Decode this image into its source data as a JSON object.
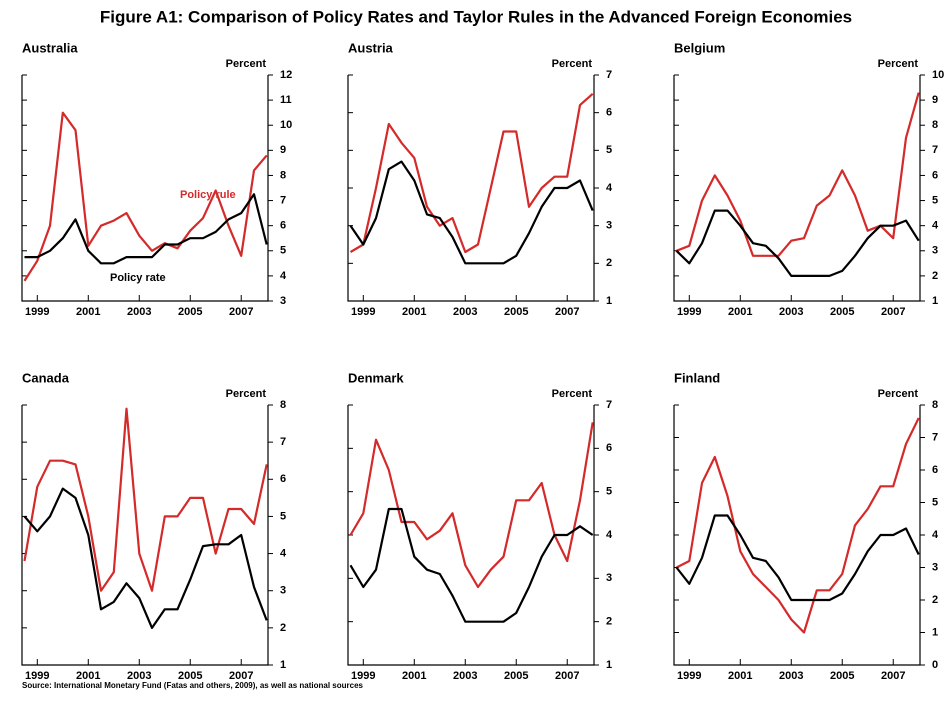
{
  "title": "Figure A1: Comparison of Policy Rates and Taylor Rules in the Advanced Foreign Economies",
  "source": "Source: International Monetary Fund (Fatas and others, 2009), as well as national sources",
  "chart_data": [
    {
      "type": "line",
      "title": "Australia",
      "ylabel": "Percent",
      "x": [
        1998.5,
        1999,
        1999.5,
        2000,
        2000.5,
        2001,
        2001.5,
        2002,
        2002.5,
        2003,
        2003.5,
        2004,
        2004.5,
        2005,
        2005.5,
        2006,
        2006.5,
        2007,
        2007.5,
        2008
      ],
      "xlim": [
        1998.4,
        2008.05
      ],
      "xticks": [
        1999,
        2001,
        2003,
        2005,
        2007
      ],
      "ylim": [
        3,
        12
      ],
      "yticks": [
        3,
        4,
        5,
        6,
        7,
        8,
        9,
        10,
        11,
        12
      ],
      "series": [
        {
          "name": "Policy rule",
          "color": "#d42a2a",
          "values": [
            3.8,
            4.6,
            6.0,
            10.5,
            9.8,
            5.2,
            6.0,
            6.2,
            6.5,
            5.6,
            5.0,
            5.3,
            5.1,
            5.8,
            6.3,
            7.4,
            6.0,
            4.8,
            8.2,
            8.8
          ]
        },
        {
          "name": "Policy rate",
          "color": "#000000",
          "values": [
            4.75,
            4.75,
            5.0,
            5.5,
            6.25,
            5.0,
            4.5,
            4.5,
            4.75,
            4.75,
            4.75,
            5.25,
            5.25,
            5.5,
            5.5,
            5.75,
            6.25,
            6.5,
            7.25,
            5.25
          ]
        }
      ]
    },
    {
      "type": "line",
      "title": "Austria",
      "ylabel": "Percent",
      "x": [
        1998.5,
        1999,
        1999.5,
        2000,
        2000.5,
        2001,
        2001.5,
        2002,
        2002.5,
        2003,
        2003.5,
        2004,
        2004.5,
        2005,
        2005.5,
        2006,
        2006.5,
        2007,
        2007.5,
        2008
      ],
      "xlim": [
        1998.4,
        2008.05
      ],
      "xticks": [
        1999,
        2001,
        2003,
        2005,
        2007
      ],
      "ylim": [
        1,
        7
      ],
      "yticks": [
        1,
        2,
        3,
        4,
        5,
        6,
        7
      ],
      "series": [
        {
          "color": "#d42a2a",
          "values": [
            2.3,
            2.5,
            4.0,
            5.7,
            5.2,
            4.8,
            3.5,
            3.0,
            3.2,
            2.3,
            2.5,
            4.0,
            5.5,
            5.5,
            3.5,
            4.0,
            4.3,
            4.3,
            6.2,
            6.5
          ]
        },
        {
          "color": "#000000",
          "values": [
            3.0,
            2.5,
            3.2,
            4.5,
            4.7,
            4.2,
            3.3,
            3.2,
            2.7,
            2.0,
            2.0,
            2.0,
            2.0,
            2.2,
            2.8,
            3.5,
            4.0,
            4.0,
            4.2,
            3.4
          ]
        }
      ]
    },
    {
      "type": "line",
      "title": "Belgium",
      "ylabel": "Percent",
      "x": [
        1998.5,
        1999,
        1999.5,
        2000,
        2000.5,
        2001,
        2001.5,
        2002,
        2002.5,
        2003,
        2003.5,
        2004,
        2004.5,
        2005,
        2005.5,
        2006,
        2006.5,
        2007,
        2007.5,
        2008
      ],
      "xlim": [
        1998.4,
        2008.05
      ],
      "xticks": [
        1999,
        2001,
        2003,
        2005,
        2007
      ],
      "ylim": [
        1,
        10
      ],
      "yticks": [
        1,
        2,
        3,
        4,
        5,
        6,
        7,
        8,
        9,
        10
      ],
      "series": [
        {
          "color": "#d42a2a",
          "values": [
            3.0,
            3.2,
            5.0,
            6.0,
            5.2,
            4.2,
            2.8,
            2.8,
            2.8,
            3.4,
            3.5,
            4.8,
            5.2,
            6.2,
            5.2,
            3.8,
            4.0,
            3.5,
            7.5,
            9.3
          ]
        },
        {
          "color": "#000000",
          "values": [
            3.0,
            2.5,
            3.3,
            4.6,
            4.6,
            4.0,
            3.3,
            3.2,
            2.7,
            2.0,
            2.0,
            2.0,
            2.0,
            2.2,
            2.8,
            3.5,
            4.0,
            4.0,
            4.2,
            3.4
          ]
        }
      ]
    },
    {
      "type": "line",
      "title": "Canada",
      "ylabel": "Percent",
      "x": [
        1998.5,
        1999,
        1999.5,
        2000,
        2000.5,
        2001,
        2001.5,
        2002,
        2002.5,
        2003,
        2003.5,
        2004,
        2004.5,
        2005,
        2005.5,
        2006,
        2006.5,
        2007,
        2007.5,
        2008
      ],
      "xlim": [
        1998.4,
        2008.05
      ],
      "xticks": [
        1999,
        2001,
        2003,
        2005,
        2007
      ],
      "ylim": [
        1,
        8
      ],
      "yticks": [
        1,
        2,
        3,
        4,
        5,
        6,
        7,
        8
      ],
      "series": [
        {
          "color": "#d42a2a",
          "values": [
            3.8,
            5.8,
            6.5,
            6.5,
            6.4,
            5.0,
            3.0,
            3.5,
            7.9,
            4.0,
            3.0,
            5.0,
            5.0,
            5.5,
            5.5,
            4.0,
            5.2,
            5.2,
            4.8,
            6.4
          ]
        },
        {
          "color": "#000000",
          "values": [
            5.0,
            4.6,
            5.0,
            5.75,
            5.5,
            4.5,
            2.5,
            2.7,
            3.2,
            2.8,
            2.0,
            2.5,
            2.5,
            3.3,
            4.2,
            4.25,
            4.25,
            4.5,
            3.1,
            2.2
          ]
        }
      ]
    },
    {
      "type": "line",
      "title": "Denmark",
      "ylabel": "Percent",
      "x": [
        1998.5,
        1999,
        1999.5,
        2000,
        2000.5,
        2001,
        2001.5,
        2002,
        2002.5,
        2003,
        2003.5,
        2004,
        2004.5,
        2005,
        2005.5,
        2006,
        2006.5,
        2007,
        2007.5,
        2008
      ],
      "xlim": [
        1998.4,
        2008.05
      ],
      "xticks": [
        1999,
        2001,
        2003,
        2005,
        2007
      ],
      "ylim": [
        1,
        7
      ],
      "yticks": [
        1,
        2,
        3,
        4,
        5,
        6,
        7
      ],
      "series": [
        {
          "color": "#d42a2a",
          "values": [
            4.0,
            4.5,
            6.2,
            5.5,
            4.3,
            4.3,
            3.9,
            4.1,
            4.5,
            3.3,
            2.8,
            3.2,
            3.5,
            4.8,
            4.8,
            5.2,
            4.0,
            3.4,
            4.8,
            6.6
          ]
        },
        {
          "color": "#000000",
          "values": [
            3.3,
            2.8,
            3.2,
            4.6,
            4.6,
            3.5,
            3.2,
            3.1,
            2.6,
            2.0,
            2.0,
            2.0,
            2.0,
            2.2,
            2.8,
            3.5,
            4.0,
            4.0,
            4.2,
            4.0
          ]
        }
      ]
    },
    {
      "type": "line",
      "title": "Finland",
      "ylabel": "Percent",
      "x": [
        1998.5,
        1999,
        1999.5,
        2000,
        2000.5,
        2001,
        2001.5,
        2002,
        2002.5,
        2003,
        2003.5,
        2004,
        2004.5,
        2005,
        2005.5,
        2006,
        2006.5,
        2007,
        2007.5,
        2008
      ],
      "xlim": [
        1998.4,
        2008.05
      ],
      "xticks": [
        1999,
        2001,
        2003,
        2005,
        2007
      ],
      "ylim": [
        0,
        8
      ],
      "yticks": [
        0,
        1,
        2,
        3,
        4,
        5,
        6,
        7,
        8
      ],
      "series": [
        {
          "color": "#d42a2a",
          "values": [
            3.0,
            3.2,
            5.6,
            6.4,
            5.2,
            3.5,
            2.8,
            2.4,
            2.0,
            1.4,
            1.0,
            2.3,
            2.3,
            2.8,
            4.3,
            4.8,
            5.5,
            5.5,
            6.8,
            7.6
          ]
        },
        {
          "color": "#000000",
          "values": [
            3.0,
            2.5,
            3.3,
            4.6,
            4.6,
            4.0,
            3.3,
            3.2,
            2.7,
            2.0,
            2.0,
            2.0,
            2.0,
            2.2,
            2.8,
            3.5,
            4.0,
            4.0,
            4.2,
            3.4
          ]
        }
      ]
    }
  ]
}
